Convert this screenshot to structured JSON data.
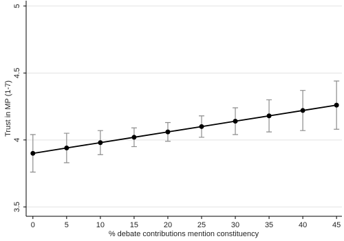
{
  "chart_data": {
    "type": "line",
    "x_label": "% debate contributions mention constituency",
    "y_label": "Trust in MP (1-7)",
    "x": [
      0,
      5,
      10,
      15,
      20,
      25,
      30,
      35,
      40,
      45
    ],
    "values": [
      3.9,
      3.94,
      3.98,
      4.02,
      4.06,
      4.1,
      4.14,
      4.18,
      4.22,
      4.26
    ],
    "errors": [
      0.14,
      0.11,
      0.09,
      0.07,
      0.07,
      0.08,
      0.1,
      0.12,
      0.15,
      0.18
    ],
    "color": "#000000",
    "error_color": "#8c8c8c",
    "xlim": [
      -1,
      45.8
    ],
    "xticks": [
      0,
      5,
      10,
      15,
      20,
      25,
      30,
      35,
      40,
      45
    ],
    "ylim": [
      3.43,
      5.04
    ],
    "yticks": [
      3.5,
      4,
      4.5,
      5
    ],
    "grid": true
  }
}
